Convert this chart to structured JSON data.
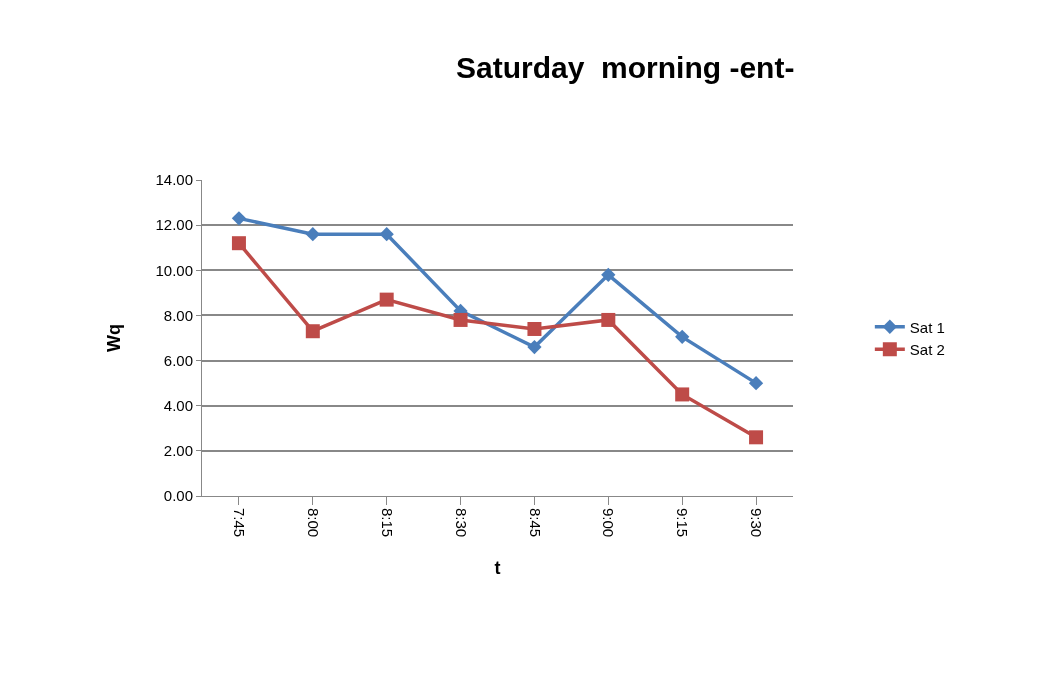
{
  "chart_data": {
    "type": "line",
    "title": "Saturday  morning -ent-",
    "xlabel": "t",
    "ylabel": "Wq",
    "categories": [
      "7:45",
      "8:00",
      "8:15",
      "8:30",
      "8:45",
      "9:00",
      "9:15",
      "9:30"
    ],
    "series": [
      {
        "name": "Sat 1",
        "color": "#4a7ebb",
        "marker": "diamond",
        "values": [
          12.3,
          11.6,
          11.6,
          8.2,
          6.6,
          9.8,
          7.05,
          5.0
        ]
      },
      {
        "name": "Sat 2",
        "color": "#be4b48",
        "marker": "square",
        "values": [
          11.2,
          7.3,
          8.7,
          7.8,
          7.4,
          7.8,
          4.5,
          2.6
        ]
      }
    ],
    "ylim": [
      0,
      14
    ],
    "yticks": [
      {
        "value": 0,
        "label": "0.00"
      },
      {
        "value": 2,
        "label": "2.00"
      },
      {
        "value": 4,
        "label": "4.00"
      },
      {
        "value": 6,
        "label": "6.00"
      },
      {
        "value": 8,
        "label": "8.00"
      },
      {
        "value": 10,
        "label": "10.00"
      },
      {
        "value": 12,
        "label": "12.00"
      },
      {
        "value": 14,
        "label": "14.00"
      }
    ],
    "grid": "y",
    "legend": "right",
    "line_style": "solid"
  }
}
